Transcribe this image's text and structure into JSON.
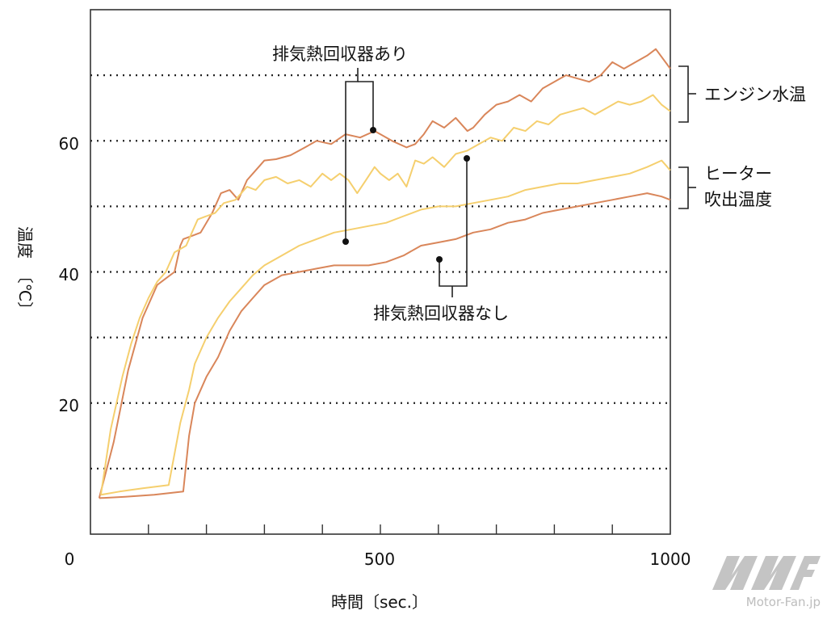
{
  "chart_data": {
    "type": "line",
    "xlabel": "時間〔sec.〕",
    "ylabel_top": "温度",
    "ylabel_unit": "〔℃〕",
    "xlim": [
      0,
      1000
    ],
    "ylim": [
      0,
      80
    ],
    "x_ticks": [
      {
        "value": 0,
        "label": "0"
      },
      {
        "value": 500,
        "label": "500"
      },
      {
        "value": 1000,
        "label": "1000"
      }
    ],
    "x_minor_ticks": [
      100,
      200,
      300,
      400,
      500,
      600,
      700,
      800,
      900
    ],
    "y_ticks": [
      {
        "value": 20,
        "label": "20"
      },
      {
        "value": 40,
        "label": "40"
      },
      {
        "value": 60,
        "label": "60"
      }
    ],
    "y_gridlines": [
      10,
      20,
      30,
      40,
      50,
      60,
      70
    ],
    "grid": "dotted horizontal",
    "colors": {
      "with_recovery": "#f5cf6e",
      "without_recovery": "#d9865a",
      "frame": "#333333",
      "watermark": "#bdbdbd"
    },
    "series": [
      {
        "color_key": "without_recovery",
        "x": [
          15,
          40,
          65,
          90,
          115,
          130,
          145,
          155,
          160,
          175,
          190,
          210,
          225,
          240,
          255,
          270,
          285,
          300,
          320,
          345,
          370,
          390,
          415,
          440,
          465,
          490,
          500,
          520,
          545,
          560,
          575,
          590,
          610,
          630,
          650,
          660,
          680,
          700,
          720,
          740,
          760,
          780,
          800,
          820,
          840,
          860,
          880,
          900,
          920,
          940,
          960,
          975,
          1000
        ],
        "y": [
          5.5,
          14,
          25,
          33,
          38,
          39,
          40,
          44,
          45,
          45.5,
          46,
          49,
          52,
          52.5,
          51,
          54,
          55.5,
          57,
          57.2,
          57.8,
          59,
          60,
          59.5,
          61,
          60.5,
          61.5,
          61,
          60,
          59,
          59.5,
          61,
          63,
          62,
          63.5,
          61.5,
          62,
          64,
          65.5,
          66,
          67,
          66,
          68,
          69,
          70,
          69.5,
          69,
          70,
          72,
          71,
          72,
          73,
          74,
          71
        ]
      },
      {
        "color_key": "with_recovery",
        "x": [
          18,
          35,
          55,
          70,
          85,
          100,
          115,
          130,
          145,
          155,
          165,
          175,
          185,
          200,
          215,
          230,
          250,
          270,
          285,
          300,
          320,
          340,
          360,
          380,
          400,
          415,
          430,
          445,
          460,
          475,
          490,
          500,
          515,
          530,
          545,
          560,
          575,
          590,
          610,
          630,
          650,
          670,
          690,
          710,
          730,
          750,
          770,
          790,
          810,
          830,
          850,
          870,
          890,
          910,
          930,
          950,
          970,
          985,
          1000
        ],
        "y": [
          6,
          16,
          24,
          29,
          33,
          36,
          38.5,
          40,
          43,
          43.5,
          44,
          46,
          48,
          48.5,
          49,
          50.5,
          51,
          53,
          52.5,
          54,
          54.5,
          53.5,
          54,
          53,
          55,
          54,
          55,
          54,
          52,
          54,
          56,
          55,
          54,
          55,
          53,
          57,
          56.5,
          57.5,
          56,
          58,
          58.5,
          59.5,
          60.5,
          60,
          62,
          61.5,
          63,
          62.5,
          64,
          64.5,
          65,
          64,
          65,
          66,
          65.5,
          66,
          67,
          65.5,
          64.5
        ]
      },
      {
        "color_key": "with_recovery",
        "x": [
          18,
          50,
          90,
          135,
          155,
          170,
          180,
          200,
          220,
          240,
          260,
          280,
          300,
          330,
          360,
          390,
          420,
          450,
          480,
          510,
          540,
          570,
          600,
          630,
          660,
          690,
          720,
          750,
          780,
          810,
          840,
          870,
          900,
          930,
          960,
          985,
          1000
        ],
        "y": [
          6,
          6.5,
          7,
          7.5,
          17,
          22,
          26,
          30,
          33,
          35.5,
          37.5,
          39.5,
          41,
          42.5,
          44,
          45,
          46,
          46.5,
          47,
          47.5,
          48.5,
          49.5,
          50,
          50,
          50.5,
          51,
          51.5,
          52.5,
          53,
          53.5,
          53.5,
          54,
          54.5,
          55,
          56,
          57,
          55.5
        ]
      },
      {
        "color_key": "without_recovery",
        "x": [
          15,
          60,
          110,
          160,
          170,
          180,
          200,
          220,
          240,
          260,
          280,
          300,
          330,
          360,
          390,
          420,
          450,
          480,
          510,
          540,
          570,
          600,
          630,
          660,
          690,
          720,
          750,
          780,
          810,
          840,
          870,
          900,
          930,
          960,
          985,
          1000
        ],
        "y": [
          5.5,
          5.7,
          6,
          6.5,
          15,
          20,
          24,
          27,
          31,
          34,
          36,
          38,
          39.5,
          40,
          40.5,
          41,
          41,
          41,
          41.5,
          42.5,
          44,
          44.5,
          45,
          46,
          46.5,
          47.5,
          48,
          49,
          49.5,
          50,
          50.5,
          51,
          51.5,
          52,
          51.5,
          51
        ]
      }
    ],
    "annotations": [
      {
        "label": "排気熱回収器あり",
        "text_x": 337,
        "text_y": 67
      },
      {
        "label": "排気熱回収器なし",
        "text_x": 462,
        "text_y": 388
      }
    ],
    "group_labels": [
      {
        "label": "エンジン水温"
      },
      {
        "label_line1": "ヒーター",
        "label_line2": "吹出温度"
      }
    ]
  },
  "watermark": {
    "logo_text": "MF",
    "site_text": "Motor-Fan.jp"
  }
}
